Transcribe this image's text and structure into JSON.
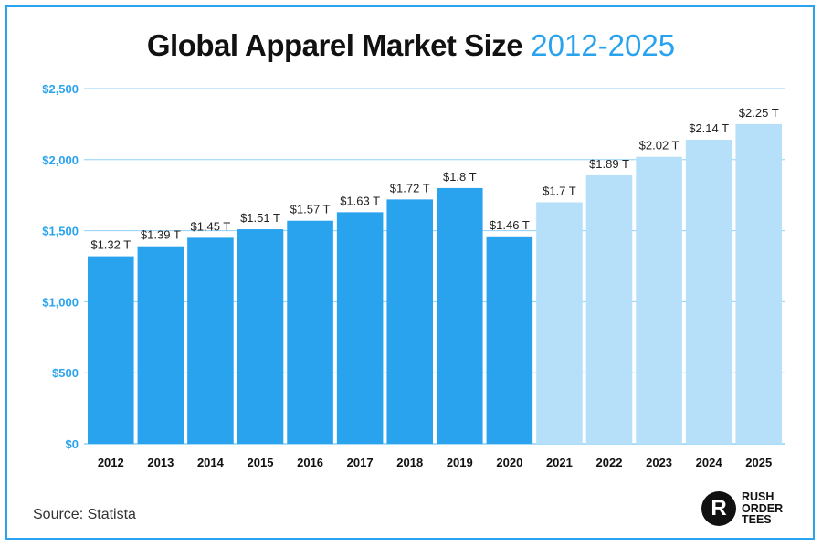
{
  "chart_data": {
    "type": "bar",
    "title": "Global Apparel Market Size",
    "title_years": "2012-2025",
    "categories": [
      "2012",
      "2013",
      "2014",
      "2015",
      "2016",
      "2017",
      "2018",
      "2019",
      "2020",
      "2021",
      "2022",
      "2023",
      "2024",
      "2025"
    ],
    "values": [
      1320,
      1390,
      1450,
      1510,
      1570,
      1630,
      1720,
      1800,
      1460,
      1700,
      1890,
      2020,
      2140,
      2250
    ],
    "value_labels": [
      "$1.32 T",
      "$1.39 T",
      "$1.45 T",
      "$1.51 T",
      "$1.57 T",
      "$1.63 T",
      "$1.72 T",
      "$1.8 T",
      "$1.46 T",
      "$1.7 T",
      "$1.89 T",
      "$2.02 T",
      "$2.14 T",
      "$2.25 T"
    ],
    "forecast_from_index": 9,
    "y_ticks": [
      0,
      500,
      1000,
      1500,
      2000,
      2500
    ],
    "y_tick_labels": [
      "$0",
      "$500",
      "$1,000",
      "$1,500",
      "$2,000",
      "$2,500"
    ],
    "ylim": [
      0,
      2500
    ],
    "xlabel": "",
    "ylabel": "",
    "grid": true,
    "colors": {
      "actual": "#2aa3ef",
      "forecast": "#b6e0fa",
      "axis_text": "#2aa3ef",
      "grid": "#8fd0f5",
      "frame": "#2aa3ef"
    }
  },
  "source": "Source: Statista",
  "logo": {
    "mark": "R",
    "lines": [
      "RUSH",
      "ORDER",
      "TEES"
    ]
  }
}
